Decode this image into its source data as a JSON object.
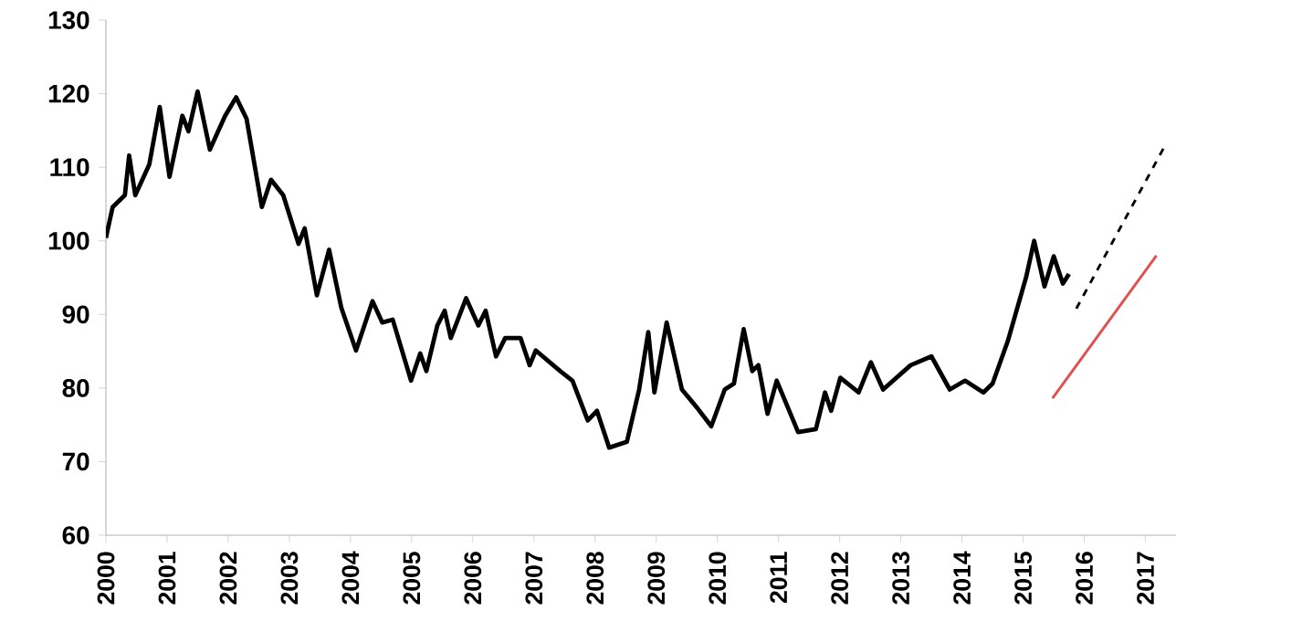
{
  "chart_data": {
    "type": "line",
    "xlim": [
      2000,
      2017.5
    ],
    "ylim": [
      60,
      130
    ],
    "xticks": [
      2000,
      2001,
      2002,
      2003,
      2004,
      2005,
      2006,
      2007,
      2008,
      2009,
      2010,
      2011,
      2012,
      2013,
      2014,
      2015,
      2016,
      2017
    ],
    "yticks": [
      60,
      70,
      80,
      90,
      100,
      110,
      120,
      130
    ],
    "grid": false,
    "marker": "none",
    "series": [
      {
        "color": "#000000",
        "line_style": "solid",
        "x": [
          2000.0,
          2000.11,
          2000.31,
          2000.38,
          2000.48,
          2000.71,
          2000.88,
          2001.04,
          2001.25,
          2001.35,
          2001.5,
          2001.7,
          2001.95,
          2002.13,
          2002.3,
          2002.55,
          2002.7,
          2002.9,
          2003.15,
          2003.25,
          2003.45,
          2003.65,
          2003.85,
          2004.09,
          2004.36,
          2004.52,
          2004.69,
          2004.99,
          2005.14,
          2005.24,
          2005.42,
          2005.54,
          2005.64,
          2005.89,
          2006.09,
          2006.21,
          2006.38,
          2006.53,
          2006.78,
          2006.93,
          2007.03,
          2007.43,
          2007.63,
          2007.88,
          2008.03,
          2008.23,
          2008.52,
          2008.72,
          2008.87,
          2008.97,
          2009.17,
          2009.42,
          2009.67,
          2009.9,
          2010.12,
          2010.27,
          2010.43,
          2010.57,
          2010.67,
          2010.82,
          2010.97,
          2011.32,
          2011.61,
          2011.76,
          2011.86,
          2012.01,
          2012.31,
          2012.51,
          2012.71,
          2013.16,
          2013.5,
          2013.8,
          2014.05,
          2014.35,
          2014.5,
          2014.75,
          2015.05,
          2015.18,
          2015.35,
          2015.5,
          2015.65,
          2015.75
        ],
        "values": [
          100.4,
          104.6,
          106.2,
          111.6,
          106.2,
          110.4,
          118.2,
          108.7,
          117.0,
          114.9,
          120.3,
          112.4,
          117.0,
          119.5,
          116.6,
          104.6,
          108.3,
          106.2,
          99.6,
          101.7,
          92.6,
          98.8,
          90.9,
          85.1,
          91.8,
          88.9,
          89.3,
          81.0,
          84.7,
          82.3,
          88.5,
          90.5,
          86.8,
          92.2,
          88.5,
          90.5,
          84.3,
          86.8,
          86.8,
          83.1,
          85.1,
          82.3,
          81.0,
          75.6,
          76.9,
          71.9,
          72.7,
          79.8,
          87.6,
          79.4,
          88.9,
          79.8,
          77.3,
          74.8,
          79.8,
          80.6,
          88.0,
          82.3,
          83.1,
          76.5,
          81.0,
          74.0,
          74.4,
          79.4,
          76.9,
          81.4,
          79.4,
          83.5,
          79.8,
          83.1,
          84.3,
          79.8,
          81.0,
          79.4,
          80.6,
          86.4,
          95.1,
          100.0,
          93.8,
          97.9,
          94.2,
          95.5
        ]
      },
      {
        "color": "#000000",
        "line_style": "dashed",
        "x": [
          2015.87,
          2017.33
        ],
        "values": [
          90.8,
          113.1
        ]
      },
      {
        "color": "#e05050",
        "line_style": "solid",
        "x": [
          2015.48,
          2017.18
        ],
        "values": [
          78.6,
          98.0
        ]
      }
    ]
  }
}
